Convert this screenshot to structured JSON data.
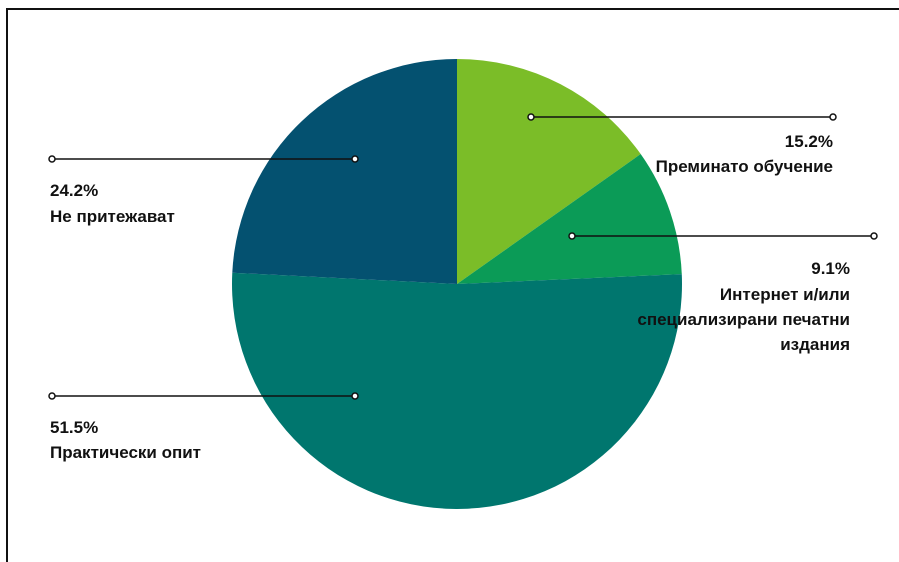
{
  "chart_data": {
    "type": "pie",
    "title": "",
    "slices": [
      {
        "label": "Преминато обучение",
        "value": 15.2,
        "value_label": "15.2%",
        "color": "#7bbd28"
      },
      {
        "label": "Интернет и/или специализирани печатни издания",
        "label_lines": [
          "Интернет и/или",
          "специализирани печатни",
          "издания"
        ],
        "value": 9.1,
        "value_label": "9.1%",
        "color": "#0b9b57"
      },
      {
        "label": "Практически опит",
        "value": 51.5,
        "value_label": "51.5%",
        "color": "#00766e"
      },
      {
        "label": "Не притежават",
        "value": 24.2,
        "value_label": "24.2%",
        "color": "#045170"
      }
    ],
    "start": "12 o'clock",
    "direction": "clockwise"
  }
}
